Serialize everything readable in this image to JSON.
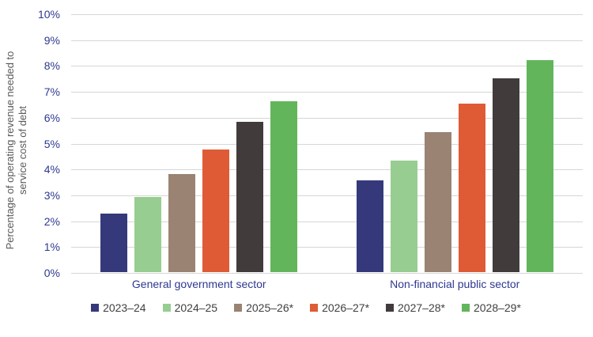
{
  "chart_data": {
    "type": "bar",
    "title": "",
    "ylabel_lines": [
      "Percentage of operating revenue needed to",
      "service cost of debt"
    ],
    "categories": [
      "General government sector",
      "Non-financial public sector"
    ],
    "series": [
      {
        "name": "2023–24",
        "color": "#35397B",
        "values": [
          2.25,
          3.55
        ]
      },
      {
        "name": "2024–25",
        "color": "#97CD90",
        "values": [
          2.9,
          4.3
        ]
      },
      {
        "name": "2025–26*",
        "color": "#9A8372",
        "values": [
          3.8,
          5.4
        ]
      },
      {
        "name": "2026–27*",
        "color": "#DF5B35",
        "values": [
          4.75,
          6.5
        ]
      },
      {
        "name": "2027–28*",
        "color": "#413B3C",
        "values": [
          5.8,
          7.5
        ]
      },
      {
        "name": "2028–29*",
        "color": "#63B55C",
        "values": [
          6.6,
          8.2
        ]
      }
    ],
    "ylim": [
      0,
      10
    ],
    "ytick_step": 1,
    "ytick_suffix": "%",
    "grid": true,
    "legend_position": "bottom"
  },
  "colors": {
    "axis_text": "#2E3890",
    "ylabel_text": "#595959",
    "legend_text": "#3F3F3F",
    "gridline": "#D6D6D6",
    "background": "#FFFFFF"
  }
}
